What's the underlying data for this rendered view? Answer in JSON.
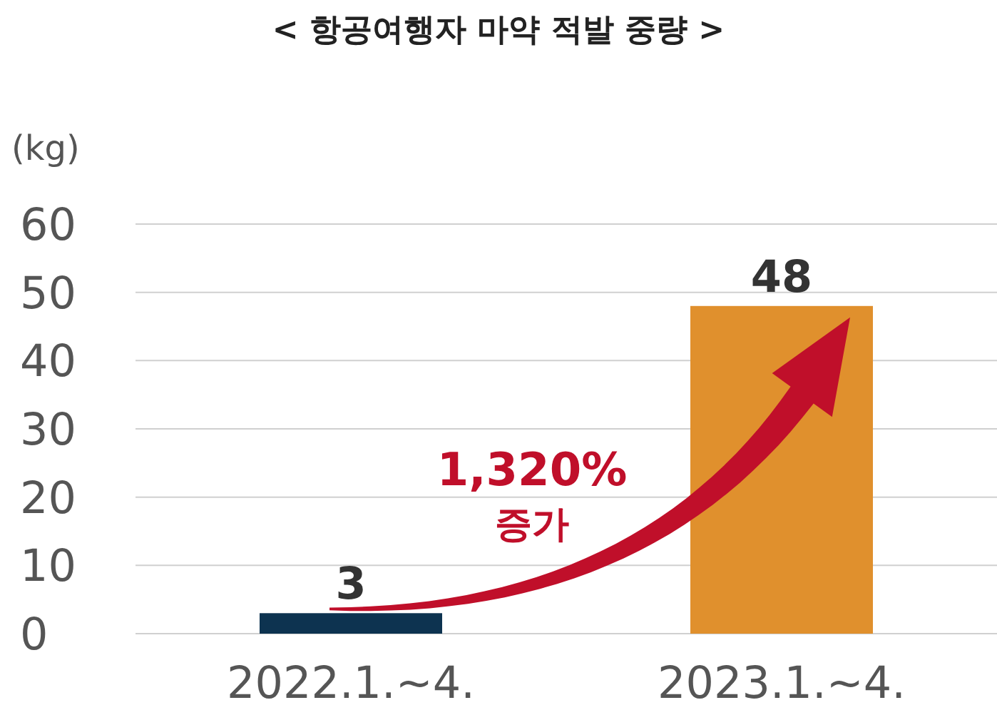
{
  "chart_data": {
    "type": "bar",
    "title": "< 항공여행자 마약 적발 중량 >",
    "ylabel": "(kg)",
    "categories": [
      "2022.1.~4.",
      "2023.1.~4."
    ],
    "values": [
      3,
      48
    ],
    "colors": [
      "#0d3350",
      "#e0902d"
    ],
    "ylim": [
      0,
      60
    ],
    "yticks": [
      0,
      10,
      20,
      30,
      40,
      50,
      60
    ],
    "grid": "y",
    "data_labels": true,
    "annotations": [
      "1,320%",
      "증가"
    ]
  }
}
